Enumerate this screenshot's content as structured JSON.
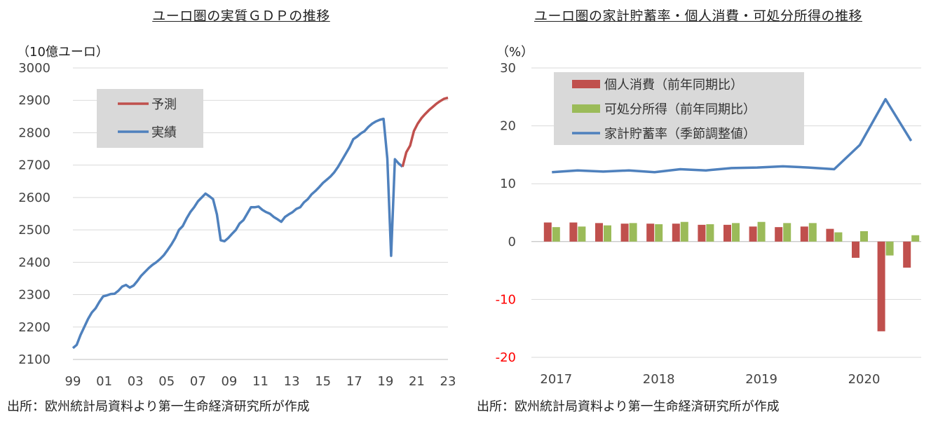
{
  "left_chart": {
    "title": "ユーロ圏の実質ＧＤＰの推移",
    "unit": "（10億ユーロ）",
    "source": "出所：欧州統計局資料より第一生命経済研究所が作成"
  },
  "right_chart": {
    "title": "ユーロ圏の家計貯蓄率・個人消費・可処分所得の推移",
    "unit": "（%）",
    "source": "出所：欧州統計局資料より第一生命経済研究所が作成"
  },
  "colors": {
    "actual": "#4f81bd",
    "forecast": "#c0504d",
    "income": "#9bbb59",
    "grid": "#d9d9d9",
    "legend_bg": "#d9d9d9",
    "negative_tick": "#ff0000"
  },
  "chart_data": [
    {
      "type": "line",
      "title": "ユーロ圏の実質ＧＤＰの推移",
      "ylabel": "（10億ユーロ）",
      "ylim": [
        2100,
        3000
      ],
      "yticks": [
        2100,
        2200,
        2300,
        2400,
        2500,
        2600,
        2700,
        2800,
        2900,
        3000
      ],
      "xlim": [
        1999.0,
        2023.75
      ],
      "xtick_labels": [
        "99",
        "01",
        "03",
        "05",
        "07",
        "09",
        "11",
        "13",
        "15",
        "17",
        "19",
        "21",
        "23"
      ],
      "legend": [
        "予測",
        "実績"
      ],
      "series": [
        {
          "name": "実績",
          "x": [
            1999.0,
            1999.25,
            1999.5,
            1999.75,
            2000.0,
            2000.25,
            2000.5,
            2000.75,
            2001.0,
            2001.25,
            2001.5,
            2001.75,
            2002.0,
            2002.25,
            2002.5,
            2002.75,
            2003.0,
            2003.25,
            2003.5,
            2003.75,
            2004.0,
            2004.25,
            2004.5,
            2004.75,
            2005.0,
            2005.25,
            2005.5,
            2005.75,
            2006.0,
            2006.25,
            2006.5,
            2006.75,
            2007.0,
            2007.25,
            2007.5,
            2007.75,
            2008.0,
            2008.25,
            2008.5,
            2008.75,
            2009.0,
            2009.25,
            2009.5,
            2009.75,
            2010.0,
            2010.25,
            2010.5,
            2010.75,
            2011.0,
            2011.25,
            2011.5,
            2011.75,
            2012.0,
            2012.25,
            2012.5,
            2012.75,
            2013.0,
            2013.25,
            2013.5,
            2013.75,
            2014.0,
            2014.25,
            2014.5,
            2014.75,
            2015.0,
            2015.25,
            2015.5,
            2015.75,
            2016.0,
            2016.25,
            2016.5,
            2016.75,
            2017.0,
            2017.25,
            2017.5,
            2017.75,
            2018.0,
            2018.25,
            2018.5,
            2018.75,
            2019.0,
            2019.25,
            2019.5,
            2019.75,
            2020.0,
            2020.25,
            2020.5,
            2020.75
          ],
          "values": [
            2135,
            2145,
            2175,
            2200,
            2225,
            2245,
            2258,
            2278,
            2295,
            2298,
            2302,
            2303,
            2312,
            2325,
            2330,
            2322,
            2328,
            2342,
            2358,
            2370,
            2382,
            2392,
            2400,
            2410,
            2422,
            2438,
            2455,
            2475,
            2500,
            2512,
            2535,
            2555,
            2570,
            2588,
            2600,
            2612,
            2604,
            2595,
            2548,
            2468,
            2465,
            2475,
            2488,
            2500,
            2520,
            2530,
            2550,
            2570,
            2570,
            2572,
            2562,
            2555,
            2550,
            2540,
            2533,
            2525,
            2540,
            2548,
            2555,
            2565,
            2570,
            2585,
            2595,
            2610,
            2620,
            2632,
            2645,
            2655,
            2665,
            2678,
            2695,
            2715,
            2735,
            2755,
            2780,
            2788,
            2798,
            2805,
            2818,
            2828,
            2835,
            2840,
            2843,
            2720,
            2420,
            2718,
            2705,
            2695
          ]
        },
        {
          "name": "予測",
          "x": [
            2020.75,
            2021.0,
            2021.25,
            2021.5,
            2021.75,
            2022.0,
            2022.25,
            2022.5,
            2022.75,
            2023.0,
            2023.25,
            2023.5,
            2023.75
          ],
          "values": [
            2695,
            2740,
            2760,
            2805,
            2828,
            2845,
            2858,
            2870,
            2880,
            2890,
            2898,
            2905,
            2908
          ]
        }
      ]
    },
    {
      "type": "bar+line",
      "title": "ユーロ圏の家計貯蓄率・個人消費・可処分所得の推移",
      "ylabel": "（%）",
      "ylim": [
        -20,
        30
      ],
      "yticks": [
        30,
        20,
        10,
        0,
        -10,
        -20
      ],
      "x_labels": [
        "2017",
        "2018",
        "2019",
        "2020"
      ],
      "categories": [
        "2017Q1",
        "2017Q2",
        "2017Q3",
        "2017Q4",
        "2018Q1",
        "2018Q2",
        "2018Q3",
        "2018Q4",
        "2019Q1",
        "2019Q2",
        "2019Q3",
        "2019Q4",
        "2020Q1",
        "2020Q2",
        "2020Q3"
      ],
      "series": [
        {
          "name": "個人消費（前年同期比）",
          "type": "bar",
          "values": [
            3.3,
            3.3,
            3.2,
            3.1,
            3.1,
            3.1,
            2.9,
            2.9,
            2.6,
            2.5,
            2.6,
            2.2,
            -2.8,
            -15.5,
            -4.5
          ]
        },
        {
          "name": "可処分所得（前年同期比）",
          "type": "bar",
          "values": [
            2.5,
            2.6,
            2.8,
            3.2,
            3.0,
            3.4,
            3.0,
            3.2,
            3.4,
            3.2,
            3.2,
            1.6,
            1.8,
            -2.4,
            1.1
          ]
        },
        {
          "name": "家計貯蓄率（季節調整値）",
          "type": "line",
          "values": [
            12.0,
            12.3,
            12.1,
            12.3,
            12.0,
            12.5,
            12.3,
            12.7,
            12.8,
            13.0,
            12.8,
            12.5,
            16.7,
            24.6,
            17.4
          ]
        }
      ]
    }
  ]
}
